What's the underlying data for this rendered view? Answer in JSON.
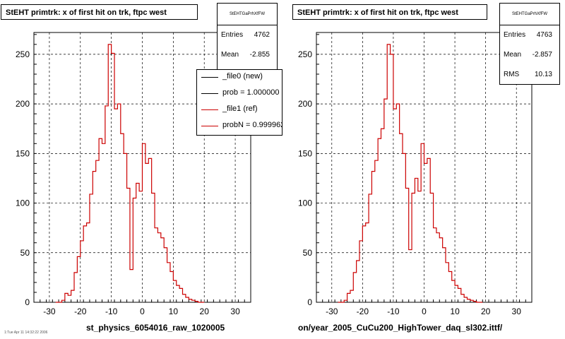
{
  "panels": [
    {
      "title": "StEHT primtrk: x of first hit on trk, ftpc west",
      "stats": {
        "title": "StEHTGaPrhXfFW",
        "entries_label": "Entries",
        "entries": "4762",
        "mean_label": "Mean",
        "mean": "-2.855"
      },
      "legend": [
        {
          "label": "_file0 (new)",
          "color": "#000000"
        },
        {
          "label": "prob = 1.000000",
          "color": "#000000"
        },
        {
          "label": "_file1 (ref)",
          "color": "#cc0000"
        },
        {
          "label": "probN = 0.999962",
          "color": "#cc0000"
        }
      ],
      "run_label": "st_physics_6054016_raw_1020005"
    },
    {
      "title": "StEHT primtrk: x of first hit on trk, ftpc west",
      "stats": {
        "title": "StEHTGaPrhXfFW",
        "entries_label": "Entries",
        "entries": "4763",
        "mean_label": "Mean",
        "mean": "-2.857",
        "rms_label": "RMS",
        "rms": "10.13"
      },
      "run_label": "on/year_2005_CuCu200_HighTower_daq_sl302.ittf/"
    }
  ],
  "footer": "1:Tue Apr 11 14:32:22 2006",
  "chart_data": [
    {
      "type": "histogram",
      "title": "StEHT primtrk: x of first hit on trk, ftpc west",
      "xlabel": "",
      "ylabel": "",
      "xlim": [
        -35,
        35
      ],
      "ylim": [
        0,
        272
      ],
      "xticks": [
        -30,
        -20,
        -10,
        0,
        10,
        20,
        30
      ],
      "yticks": [
        0,
        50,
        100,
        150,
        200,
        250
      ],
      "grid": true,
      "bin_width": 1,
      "bin_start": -28,
      "series": [
        {
          "color": "#cc0000",
          "values": [
            0,
            0,
            2,
            9,
            7,
            12,
            30,
            46,
            62,
            77,
            80,
            109,
            132,
            143,
            165,
            160,
            198,
            260,
            251,
            195,
            200,
            170,
            150,
            115,
            33,
            105,
            120,
            112,
            160,
            140,
            145,
            110,
            75,
            70,
            65,
            55,
            40,
            31,
            22,
            17,
            14,
            8,
            5,
            3,
            2,
            1,
            0,
            0
          ]
        }
      ]
    },
    {
      "type": "histogram",
      "title": "StEHT primtrk: x of first hit on trk, ftpc west",
      "xlabel": "",
      "ylabel": "",
      "xlim": [
        -35,
        35
      ],
      "ylim": [
        0,
        272
      ],
      "xticks": [
        -30,
        -20,
        -10,
        0,
        10,
        20,
        30
      ],
      "yticks": [
        0,
        50,
        100,
        150,
        200,
        250
      ],
      "grid": true,
      "bin_width": 1,
      "bin_start": -28,
      "series": [
        {
          "color": "#cc0000",
          "values": [
            0,
            0,
            2,
            9,
            12,
            30,
            42,
            62,
            77,
            80,
            109,
            132,
            143,
            165,
            175,
            205,
            260,
            250,
            195,
            200,
            170,
            150,
            115,
            53,
            110,
            125,
            112,
            160,
            140,
            145,
            110,
            75,
            70,
            65,
            55,
            40,
            31,
            22,
            17,
            14,
            8,
            5,
            3,
            2,
            1,
            0,
            0
          ]
        }
      ]
    }
  ]
}
